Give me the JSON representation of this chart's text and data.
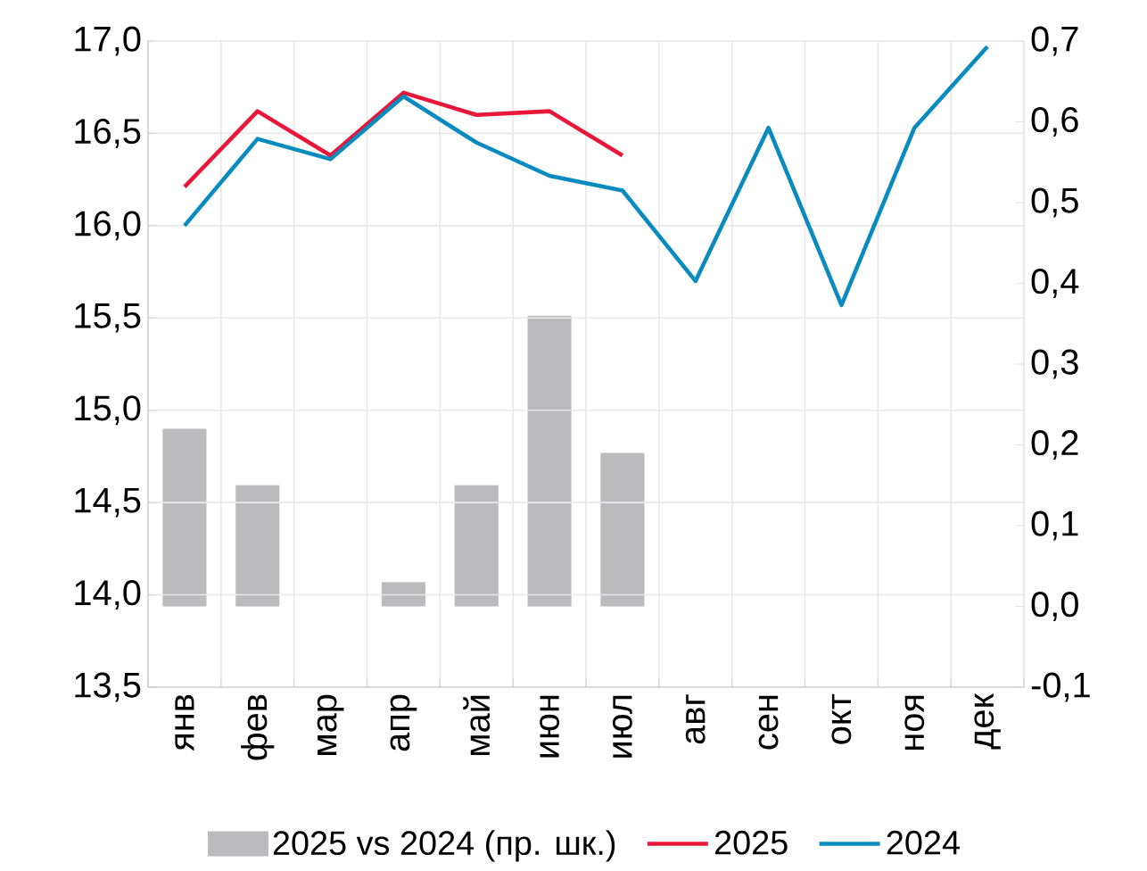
{
  "chart_data": {
    "type": "line",
    "categories": [
      "янв",
      "фев",
      "мар",
      "апр",
      "май",
      "июн",
      "июл",
      "авг",
      "сен",
      "окт",
      "ноя",
      "дек"
    ],
    "series": [
      {
        "name": "2025 vs 2024 (пр. шк.)",
        "type": "bar",
        "axis": "y2",
        "color": "#bbbbbd",
        "values": [
          0.22,
          0.15,
          0.0,
          0.03,
          0.15,
          0.36,
          0.19,
          null,
          null,
          null,
          null,
          null
        ]
      },
      {
        "name": "2025",
        "color": "#e8173a",
        "values": [
          16.21,
          16.62,
          16.38,
          16.72,
          16.6,
          16.62,
          16.38,
          null,
          null,
          null,
          null,
          null
        ]
      },
      {
        "name": "2024",
        "color": "#0a8bbf",
        "values": [
          16.0,
          16.47,
          16.36,
          16.7,
          16.45,
          16.27,
          16.19,
          15.7,
          16.53,
          15.57,
          16.53,
          16.97
        ]
      }
    ],
    "ylim": [
      13.5,
      17.0
    ],
    "yticks": [
      {
        "value": 13.5,
        "label": "13,5"
      },
      {
        "value": 14.0,
        "label": "14,0"
      },
      {
        "value": 14.5,
        "label": "14,5"
      },
      {
        "value": 15.0,
        "label": "15,0"
      },
      {
        "value": 15.5,
        "label": "15,5"
      },
      {
        "value": 16.0,
        "label": "16,0"
      },
      {
        "value": 16.5,
        "label": "16,5"
      },
      {
        "value": 17.0,
        "label": "17,0"
      }
    ],
    "y2lim": [
      -0.1,
      0.7
    ],
    "y2ticks": [
      {
        "value": -0.1,
        "label": "-0,1"
      },
      {
        "value": 0.0,
        "label": "0,0"
      },
      {
        "value": 0.1,
        "label": "0,1"
      },
      {
        "value": 0.2,
        "label": "0,2"
      },
      {
        "value": 0.3,
        "label": "0,3"
      },
      {
        "value": 0.4,
        "label": "0,4"
      },
      {
        "value": 0.5,
        "label": "0,5"
      },
      {
        "value": 0.6,
        "label": "0,6"
      },
      {
        "value": 0.7,
        "label": "0,7"
      }
    ],
    "grid": true,
    "legend": "bottom",
    "line_style": "solid",
    "marker": "none"
  }
}
